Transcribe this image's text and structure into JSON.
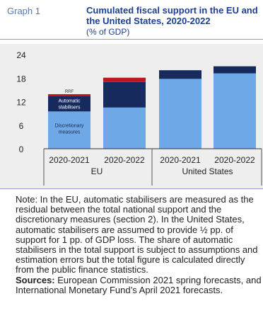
{
  "header": {
    "graph_label": "Graph 1",
    "title": "Cumulated fiscal support in the EU and the United States, 2020-2022",
    "subtitle": "(% of GDP)"
  },
  "chart_data": {
    "type": "bar",
    "stacked": true,
    "ylim": [
      0,
      24
    ],
    "yticks": [
      0,
      6,
      12,
      18,
      24
    ],
    "grid": false,
    "categories": [
      "2020-2021",
      "2020-2022",
      "2020-2021",
      "2020-2022"
    ],
    "groups": [
      {
        "label": "EU",
        "categories": [
          0,
          1
        ]
      },
      {
        "label": "United States",
        "categories": [
          2,
          3
        ]
      }
    ],
    "series": [
      {
        "name": "Discretionary measures",
        "color": "#6fa8e6",
        "values": [
          9.5,
          10.5,
          17.8,
          19.2
        ]
      },
      {
        "name": "Automatic stabilisers",
        "color": "#162a5e",
        "values": [
          4.0,
          6.5,
          2.2,
          1.8
        ]
      },
      {
        "name": "RRF",
        "color": "#c0161e",
        "values": [
          0.4,
          1.1,
          0,
          0
        ]
      }
    ],
    "in_bar_labels": {
      "RRF": "RRF",
      "automatic": [
        "Automatic",
        "stabilisers"
      ],
      "discretionary": [
        "Discretionary",
        "measures"
      ]
    }
  },
  "note": {
    "text": "Note: In the EU, automatic stabilisers are measured as the residual between the total national support and the discretionary measures (section 2). In the United States, automatic stabilisers are assumed to provide ½ pp. of support for 1 pp. of GDP loss. The share of automatic stabilisers in the total support is subject to assumptions and estimation errors but the total figure is calculated directly from the public finance statistics.",
    "sources_label": "Sources:",
    "sources_text": " European Commission 2021 spring forecasts, and International Monetary Fund’s April 2021 forecasts."
  }
}
